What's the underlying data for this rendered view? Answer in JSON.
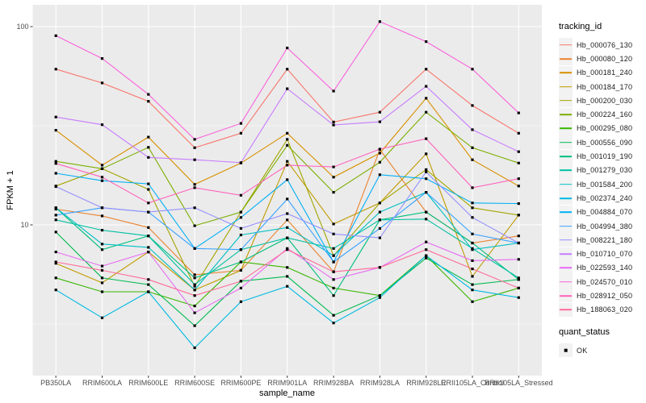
{
  "figure": {
    "background": "#FFFFFF",
    "panel_background": "#EBEBEB",
    "grid_color": "#FFFFFF",
    "axis_text_color": "#4D4D4D",
    "tick_color": "#333333",
    "point_color": "#000000"
  },
  "legend": {
    "tracking_title": "tracking_id",
    "quant_title": "quant_status",
    "quant_items": [
      {
        "label": "OK",
        "symbol": "black-square"
      }
    ]
  },
  "chart_data": {
    "type": "line",
    "title": "",
    "xlabel": "sample_name",
    "ylabel": "FPKM + 1",
    "legend_position": "right",
    "grid": true,
    "y_axis": {
      "scale": "log10",
      "ticks": [
        10,
        100
      ],
      "tick_labels": [
        "10",
        "100"
      ],
      "minor_ticks": [
        3.162,
        31.62
      ],
      "range": [
        1.75,
        128
      ]
    },
    "point_shape": "filled-black-square",
    "x_categories": [
      "PB350LA",
      "RRIM600LA",
      "RRIM600LE",
      "RRIM600SE",
      "RRIM600PE",
      "RRIM901LA",
      "RRIM928BA",
      "RRIM928LA",
      "RRIM928LE",
      "RRII105LA_Control",
      "RRII105LA_Stressed"
    ],
    "series": [
      {
        "name": "Hb_000076_130",
        "color": "#F8766D",
        "values": [
          61,
          52,
          42,
          24.5,
          29,
          61,
          33,
          37,
          61,
          40,
          29
        ]
      },
      {
        "name": "Hb_000080_120",
        "color": "#EA8331",
        "values": [
          12.0,
          11.1,
          9.7,
          5.6,
          5.9,
          10.6,
          5.8,
          24,
          11.6,
          8.1,
          8.8
        ]
      },
      {
        "name": "Hb_000181_240",
        "color": "#D89000",
        "values": [
          30,
          20,
          27.7,
          16,
          20.5,
          29,
          17.4,
          23,
          43.5,
          21.3,
          15.7
        ]
      },
      {
        "name": "Hb_000184_170",
        "color": "#C09B00",
        "values": [
          6.4,
          5.1,
          7.3,
          4.7,
          5.9,
          20.9,
          10.1,
          12.9,
          22.8,
          5.5,
          11.2
        ]
      },
      {
        "name": "Hb_000200_030",
        "color": "#A3A500",
        "values": [
          15.7,
          19.2,
          15.1,
          4.9,
          11.6,
          27,
          7.0,
          12.9,
          19,
          12.2,
          11.2
        ]
      },
      {
        "name": "Hb_000224_160",
        "color": "#7CAE00",
        "values": [
          20.9,
          19.2,
          24.6,
          9.9,
          11.6,
          25.2,
          14.6,
          20.7,
          37,
          24.5,
          20.5
        ]
      },
      {
        "name": "Hb_000295_080",
        "color": "#39B600",
        "values": [
          5.4,
          4.6,
          4.6,
          3.9,
          6.5,
          6.1,
          4.8,
          4.4,
          7.0,
          4.1,
          4.8
        ]
      },
      {
        "name": "Hb_000556_090",
        "color": "#00BB4E",
        "values": [
          9.2,
          5.4,
          5.0,
          3.1,
          5.2,
          5.5,
          3.5,
          4.4,
          6.8,
          5.0,
          5.3
        ]
      },
      {
        "name": "Hb_001019_190",
        "color": "#00BF7D",
        "values": [
          12.2,
          7.5,
          8.8,
          5.4,
          6.5,
          8.6,
          4.4,
          10.6,
          11.6,
          8.1,
          5.3
        ]
      },
      {
        "name": "Hb_001279_030",
        "color": "#00C1A3",
        "values": [
          10.6,
          9.4,
          8.8,
          5.0,
          7.5,
          8.6,
          7.6,
          10.6,
          10.7,
          7.6,
          5.4
        ]
      },
      {
        "name": "Hb_001584_200",
        "color": "#00BFC4",
        "values": [
          12.2,
          8.0,
          7.7,
          4.7,
          8.9,
          9.7,
          7.0,
          11.6,
          14.6,
          7.5,
          8.1
        ]
      },
      {
        "name": "Hb_002374_240",
        "color": "#00BAE0",
        "values": [
          4.7,
          3.4,
          4.6,
          2.4,
          4.1,
          4.9,
          3.2,
          4.3,
          7.0,
          4.7,
          4.3
        ]
      },
      {
        "name": "Hb_004884_070",
        "color": "#00B0F6",
        "values": [
          18.2,
          16.7,
          16.1,
          7.6,
          10.9,
          16.9,
          6.5,
          17.9,
          17.1,
          12.9,
          12.8
        ]
      },
      {
        "name": "Hb_004994_380",
        "color": "#35A2FF",
        "values": [
          11.2,
          12.2,
          11.6,
          7.6,
          7.5,
          13.5,
          6.5,
          9.6,
          14.6,
          9.0,
          8.1
        ]
      },
      {
        "name": "Hb_008221_180",
        "color": "#9590FF",
        "values": [
          15.6,
          12.2,
          11.6,
          12.2,
          9.6,
          11.4,
          9.0,
          8.6,
          18.5,
          10.9,
          8.1
        ]
      },
      {
        "name": "Hb_010710_070",
        "color": "#C77CFF",
        "values": [
          35,
          32,
          21.9,
          21.3,
          20.6,
          48.6,
          31.9,
          33.1,
          50,
          30.2,
          23.4
        ]
      },
      {
        "name": "Hb_022593_140",
        "color": "#E76BF3",
        "values": [
          7.3,
          6.2,
          7.3,
          3.6,
          4.8,
          7.6,
          5.3,
          6.1,
          8.2,
          6.6,
          6.7
        ]
      },
      {
        "name": "Hb_024570_010",
        "color": "#FA62DB",
        "values": [
          90,
          69,
          45.5,
          27,
          32.5,
          78,
          47.3,
          106,
          84,
          61,
          36.7
        ]
      },
      {
        "name": "Hb_028912_050",
        "color": "#FF62BC",
        "values": [
          20.4,
          17.4,
          12.9,
          15.4,
          14.1,
          20,
          19.6,
          24.1,
          27.2,
          15.4,
          17.1
        ]
      },
      {
        "name": "Hb_188063_020",
        "color": "#FF6A98",
        "values": [
          6.5,
          5.9,
          5.3,
          4.4,
          5.2,
          7.5,
          5.8,
          6.1,
          7.5,
          6.0,
          4.8
        ]
      }
    ]
  }
}
